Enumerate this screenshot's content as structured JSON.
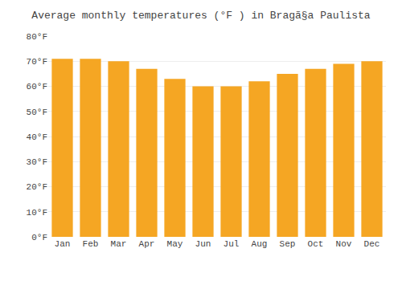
{
  "chart_data": {
    "type": "bar",
    "title": "Average monthly temperatures (°F ) in Bragã§a Paulista",
    "categories": [
      "Jan",
      "Feb",
      "Mar",
      "Apr",
      "May",
      "Jun",
      "Jul",
      "Aug",
      "Sep",
      "Oct",
      "Nov",
      "Dec"
    ],
    "values": [
      71,
      71,
      70,
      67,
      63,
      60,
      60,
      62,
      65,
      67,
      69,
      70
    ],
    "color": "#F5A623",
    "ylim": [
      0,
      80
    ],
    "yticks": [
      {
        "value": 0,
        "label": "0°F"
      },
      {
        "value": 10,
        "label": "10°F"
      },
      {
        "value": 20,
        "label": "20°F"
      },
      {
        "value": 30,
        "label": "30°F"
      },
      {
        "value": 40,
        "label": "40°F"
      },
      {
        "value": 50,
        "label": "50°F"
      },
      {
        "value": 60,
        "label": "60°F"
      },
      {
        "value": 70,
        "label": "70°F"
      },
      {
        "value": 80,
        "label": "80°F"
      }
    ],
    "grid": true
  }
}
